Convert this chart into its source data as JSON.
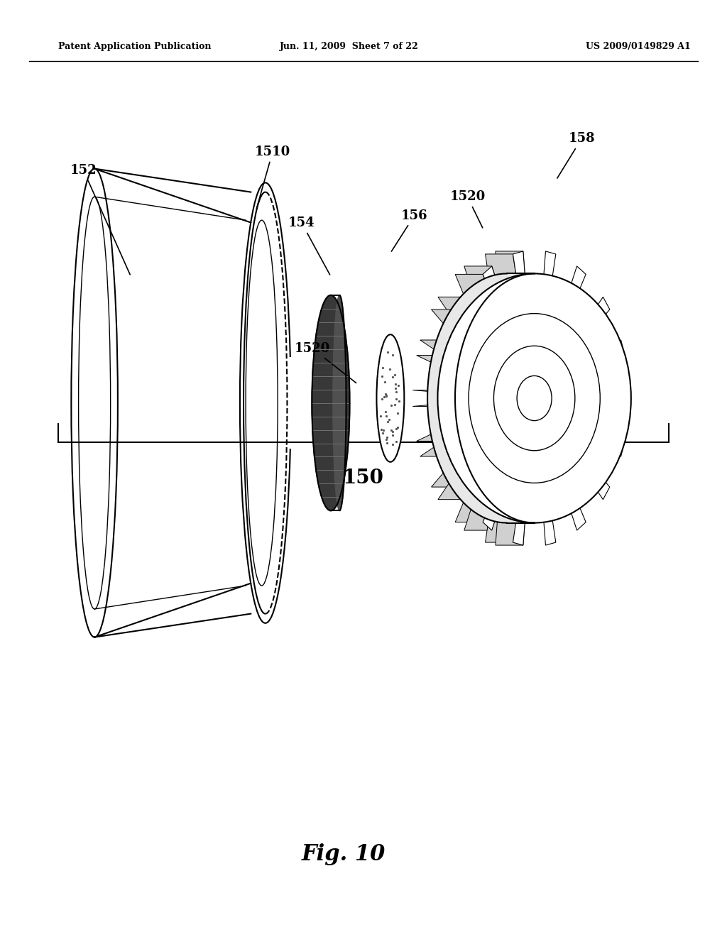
{
  "bg_color": "#ffffff",
  "header_left": "Patent Application Publication",
  "header_mid": "Jun. 11, 2009  Sheet 7 of 22",
  "header_right": "US 2009/0149829 A1",
  "fig_label": "Fig. 10",
  "bracket_label": "150"
}
